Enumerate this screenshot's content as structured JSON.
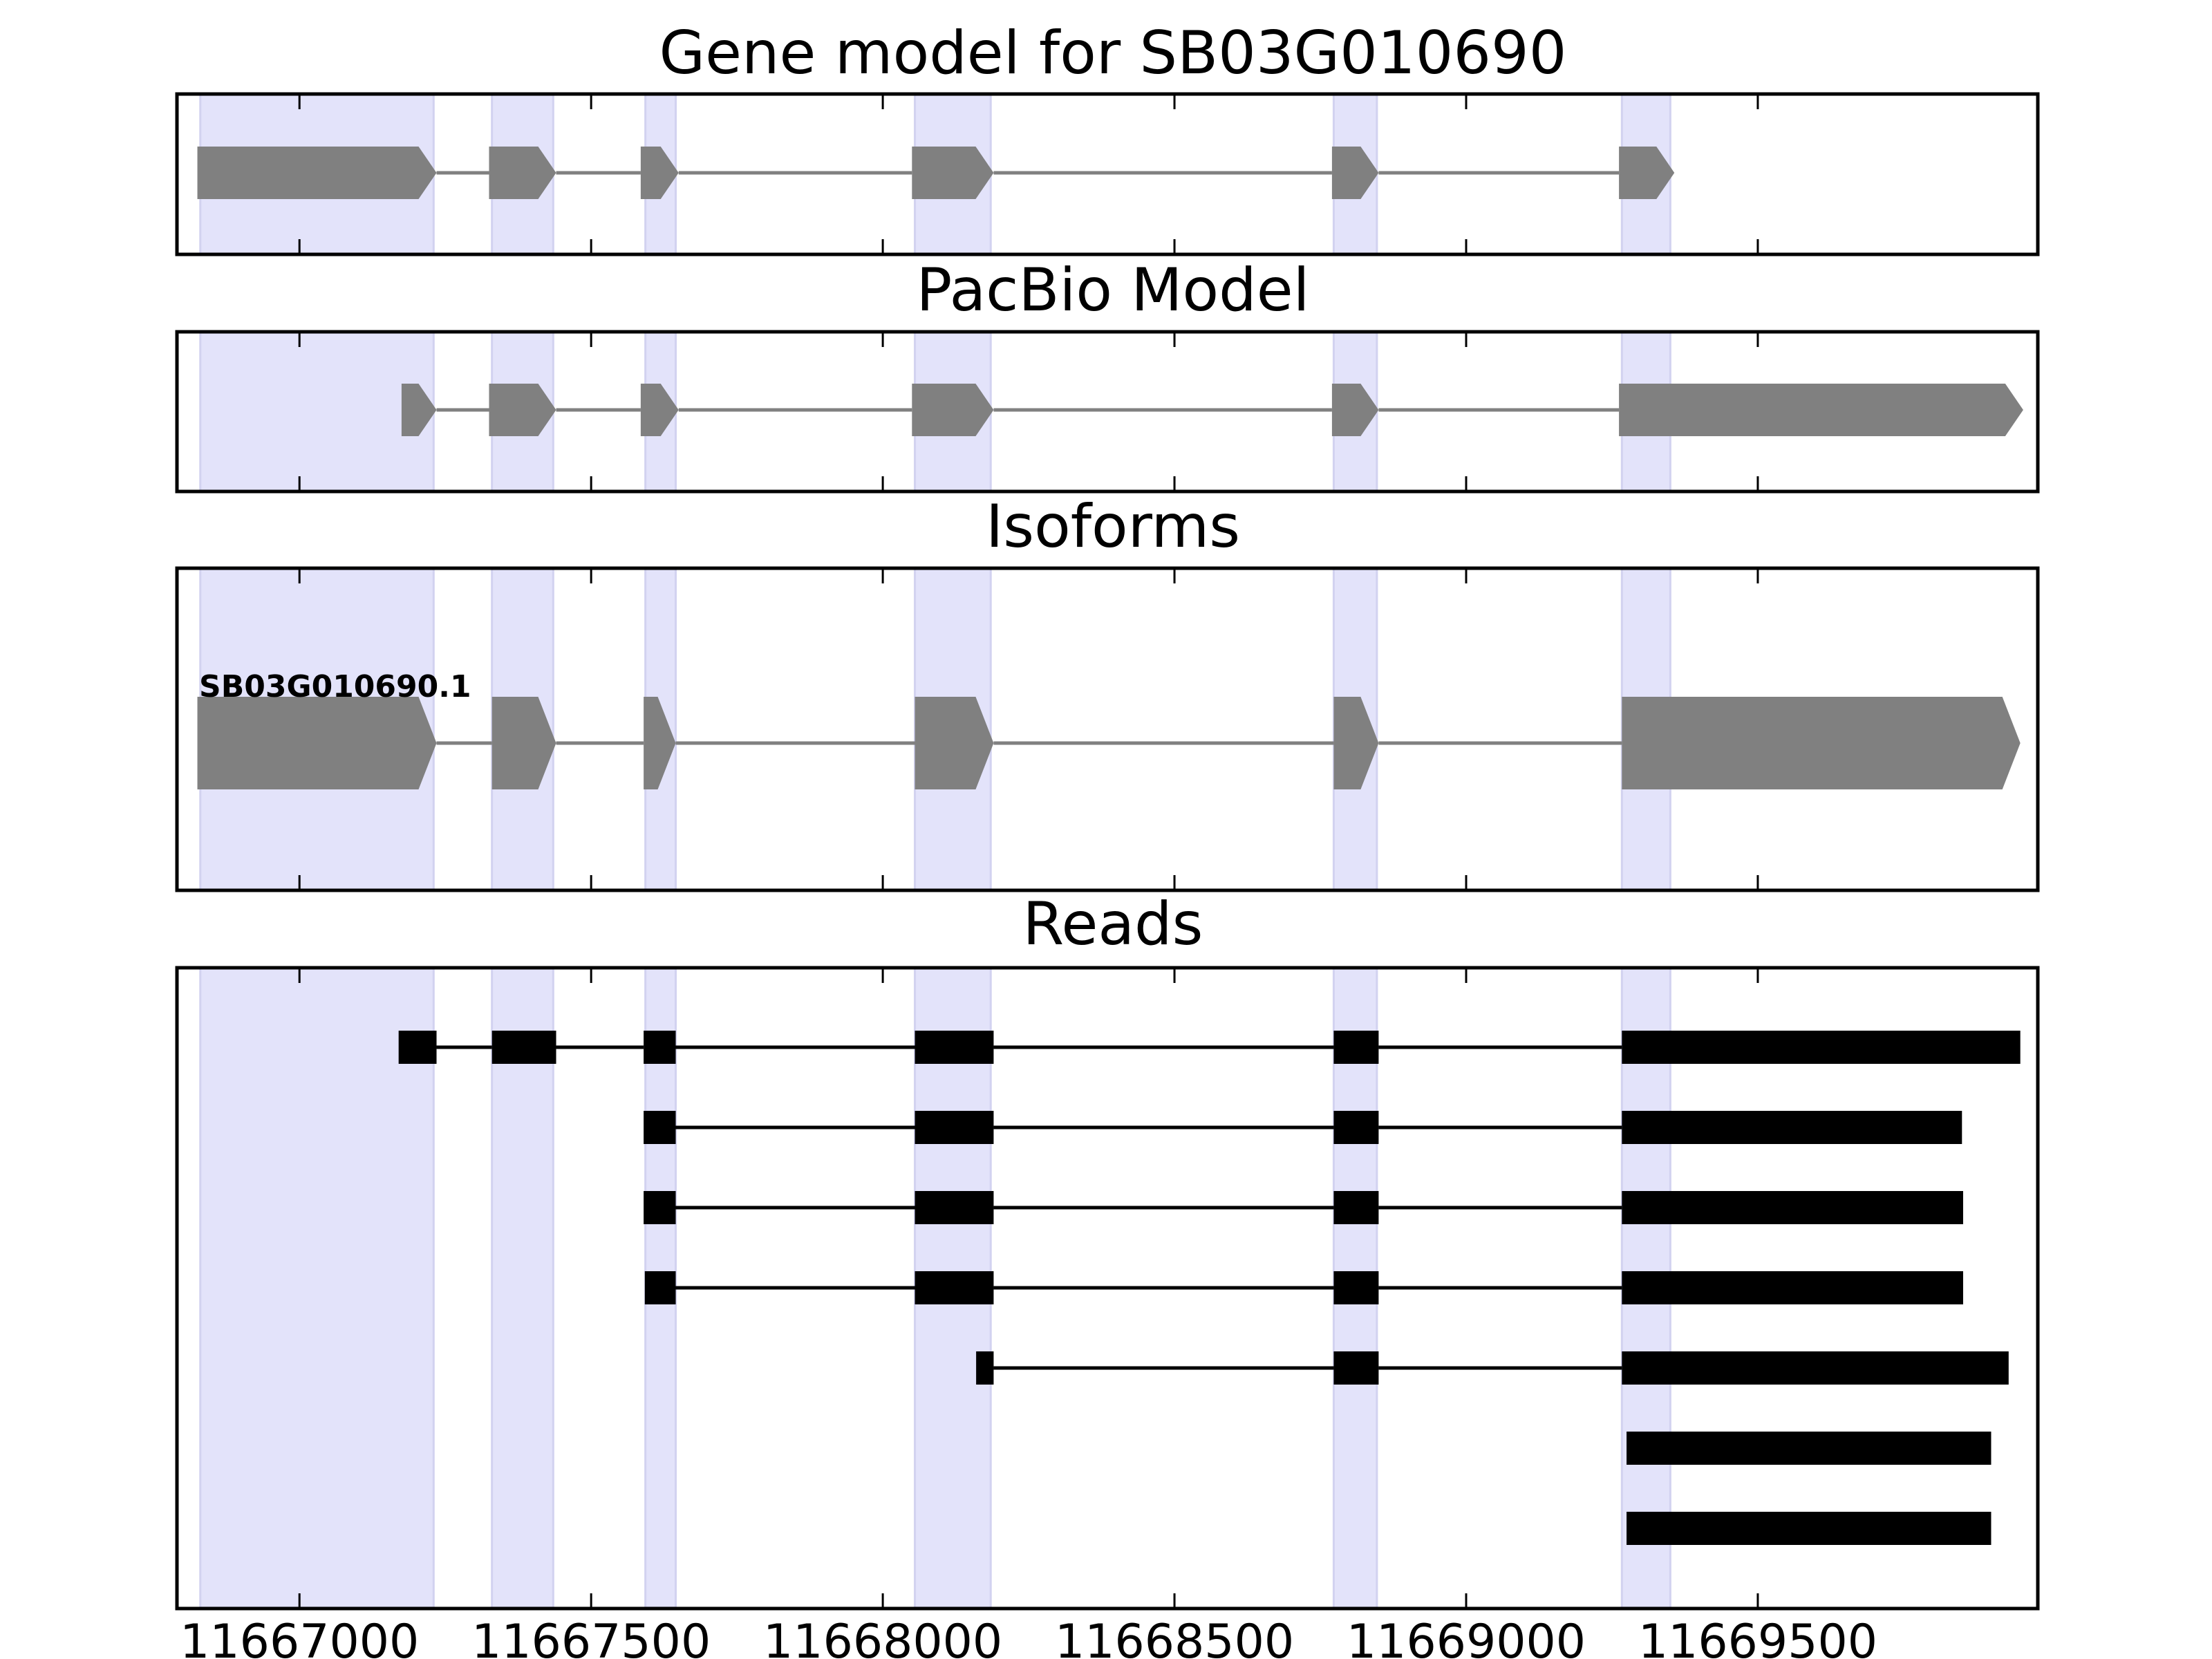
{
  "chart_data": {
    "type": "gene-track",
    "x_range": [
      11666790,
      11669980
    ],
    "x_ticks": [
      11667000,
      11667500,
      11668000,
      11668500,
      11669000,
      11669500
    ],
    "x_tick_labels": [
      "11667000",
      "11667500",
      "11668000",
      "11668500",
      "11669000",
      "11669500"
    ],
    "highlight_regions": [
      [
        11666830,
        11667230
      ],
      [
        11667330,
        11667435
      ],
      [
        11667593,
        11667645
      ],
      [
        11668055,
        11668185
      ],
      [
        11668773,
        11668847
      ],
      [
        11669267,
        11669350
      ]
    ],
    "colors": {
      "highlight": "#e3e3fa",
      "model": "#808080",
      "read": "#000000",
      "intron": "#808080"
    },
    "panels": [
      {
        "title": "Gene model for SB03G010690",
        "strand": "+",
        "models": [
          {
            "exons": [
              [
                11666825,
                11667235
              ],
              [
                11667325,
                11667440
              ],
              [
                11667585,
                11667650
              ],
              [
                11668050,
                11668190
              ],
              [
                11668770,
                11668850
              ],
              [
                11669262,
                11669357
              ]
            ]
          }
        ]
      },
      {
        "title": "PacBio Model",
        "strand": "+",
        "models": [
          {
            "exons": [
              [
                11667175,
                11667235
              ],
              [
                11667325,
                11667440
              ],
              [
                11667585,
                11667650
              ],
              [
                11668050,
                11668190
              ],
              [
                11668770,
                11668850
              ],
              [
                11669262,
                11669955
              ]
            ]
          }
        ]
      },
      {
        "title": "Isoforms",
        "strand": "+",
        "models": [
          {
            "label": "SB03G010690.1",
            "exons": [
              [
                11666825,
                11667235
              ],
              [
                11667330,
                11667440
              ],
              [
                11667590,
                11667645
              ],
              [
                11668055,
                11668190
              ],
              [
                11668773,
                11668850
              ],
              [
                11669267,
                11669950
              ]
            ]
          }
        ]
      },
      {
        "title": "Reads",
        "reads": [
          [
            [
              11667170,
              11667235
            ],
            [
              11667330,
              11667440
            ],
            [
              11667590,
              11667645
            ],
            [
              11668055,
              11668190
            ],
            [
              11668773,
              11668850
            ],
            [
              11669267,
              11669950
            ]
          ],
          [
            [
              11667590,
              11667645
            ],
            [
              11668055,
              11668190
            ],
            [
              11668773,
              11668850
            ],
            [
              11669267,
              11669850
            ]
          ],
          [
            [
              11667590,
              11667645
            ],
            [
              11668055,
              11668190
            ],
            [
              11668773,
              11668850
            ],
            [
              11669267,
              11669852
            ]
          ],
          [
            [
              11667592,
              11667645
            ],
            [
              11668055,
              11668190
            ],
            [
              11668773,
              11668850
            ],
            [
              11669267,
              11669852
            ]
          ],
          [
            [
              11668160,
              11668190
            ],
            [
              11668773,
              11668850
            ],
            [
              11669267,
              11669930
            ]
          ],
          [
            [
              11669275,
              11669900
            ]
          ],
          [
            [
              11669275,
              11669900
            ]
          ]
        ]
      }
    ]
  }
}
